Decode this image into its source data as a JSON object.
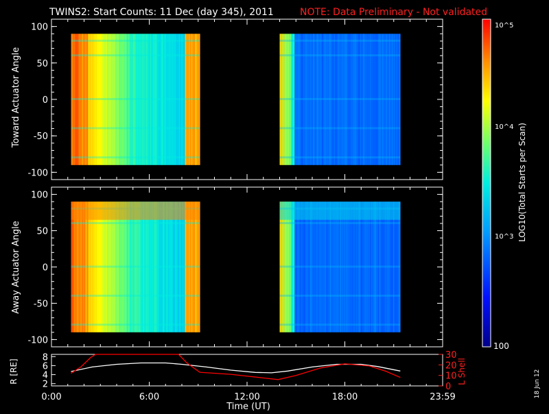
{
  "title": "TWINS2: Start Counts: 11 Dec (day 345), 2011",
  "note": "NOTE: Data Preliminary - Not validated",
  "date_stamp": "18 Jun 12",
  "colorbar": {
    "label": "LOG10(Total Starts per Scan)",
    "ticks": [
      "10^5",
      "10^4",
      "10^3",
      "100"
    ]
  },
  "chart_data": [
    {
      "type": "heatmap",
      "panel": "toward",
      "ylabel": "Toward Actuator Angle",
      "ylim": [
        -110,
        110
      ],
      "yticks": [
        100,
        50,
        0,
        -50,
        -100
      ],
      "xlim_hours": [
        0,
        24
      ],
      "data_intervals_hours": [
        [
          1.2,
          9.1
        ],
        [
          14.0,
          21.4
        ]
      ],
      "color_scale": "log",
      "zlim": [
        100,
        100000
      ]
    },
    {
      "type": "heatmap",
      "panel": "away",
      "ylabel": "Away Actuator Angle",
      "ylim": [
        -110,
        110
      ],
      "yticks": [
        100,
        50,
        0,
        -50,
        -100
      ],
      "xlim_hours": [
        0,
        24
      ],
      "data_intervals_hours": [
        [
          1.2,
          9.1
        ],
        [
          14.0,
          21.4
        ]
      ],
      "color_scale": "log",
      "zlim": [
        100,
        100000
      ]
    },
    {
      "type": "line",
      "panel": "orbit",
      "xlabel": "Time (UT)",
      "xticks": [
        "0:00",
        "6:00",
        "12:00",
        "18:00",
        "23:59"
      ],
      "ylabel_left": "R [RE]",
      "yticks_left": [
        2,
        4,
        6,
        8
      ],
      "ylim_left": [
        1.5,
        8.5
      ],
      "ylabel_right": "L Shell",
      "yticks_right": [
        0,
        10,
        20,
        30
      ],
      "ylim_right": [
        0,
        30
      ],
      "series": [
        {
          "name": "R [RE]",
          "color": "#ffffff",
          "axis": "left",
          "x": [
            1.2,
            2.5,
            4.0,
            5.5,
            7.0,
            8.0,
            9.5,
            11.0,
            12.5,
            13.5,
            14.5,
            16.0,
            17.5,
            19.0,
            20.0,
            21.4
          ],
          "y": [
            4.7,
            5.7,
            6.3,
            6.6,
            6.6,
            6.3,
            5.7,
            5.0,
            4.5,
            4.4,
            4.8,
            5.7,
            6.3,
            6.3,
            5.8,
            4.8
          ]
        },
        {
          "name": "L Shell",
          "color": "#ff0000",
          "axis": "right",
          "x": [
            1.2,
            1.8,
            2.4,
            2.7,
            7.8,
            8.3,
            9.1,
            11.0,
            13.9,
            15.0,
            16.5,
            18.0,
            19.5,
            20.5,
            21.4
          ],
          "y": [
            12,
            18,
            27,
            31,
            31,
            22,
            13,
            11,
            6,
            10,
            17,
            21,
            19,
            14,
            8
          ]
        }
      ]
    }
  ]
}
